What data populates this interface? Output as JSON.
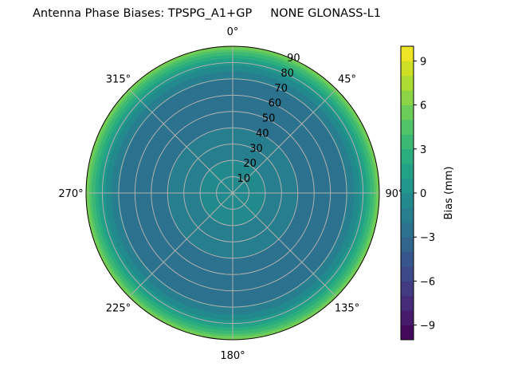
{
  "chart_data": {
    "type": "heatmap",
    "subtype": "polar-contour",
    "title": "Antenna Phase Biases: TPSPG_A1+GP     NONE GLONASS-L1",
    "angular_ticks": [
      "0°",
      "45°",
      "90°",
      "135°",
      "180°",
      "225°",
      "270°",
      "315°"
    ],
    "radial_ticks": [
      "10",
      "20",
      "30",
      "40",
      "50",
      "60",
      "70",
      "80",
      "90"
    ],
    "radial_range": [
      0,
      90
    ],
    "grid": true,
    "colormap": "viridis",
    "colorbar": {
      "label": "Bias (mm)",
      "range": [
        -10,
        10
      ],
      "level_step": 1,
      "ticks": [
        -9,
        -6,
        -3,
        0,
        3,
        6,
        9
      ],
      "tick_labels": [
        "−9",
        "−6",
        "−3",
        "0",
        "3",
        "6",
        "9"
      ]
    },
    "radial_profile_approx": {
      "zenith_deg": [
        0,
        10,
        20,
        30,
        40,
        50,
        60,
        70,
        75,
        80,
        85,
        90
      ],
      "bias_mm": [
        0,
        -0.5,
        -1,
        -1.5,
        -2,
        -2.5,
        -2.5,
        -2,
        -1,
        0.5,
        3,
        6
      ]
    }
  }
}
